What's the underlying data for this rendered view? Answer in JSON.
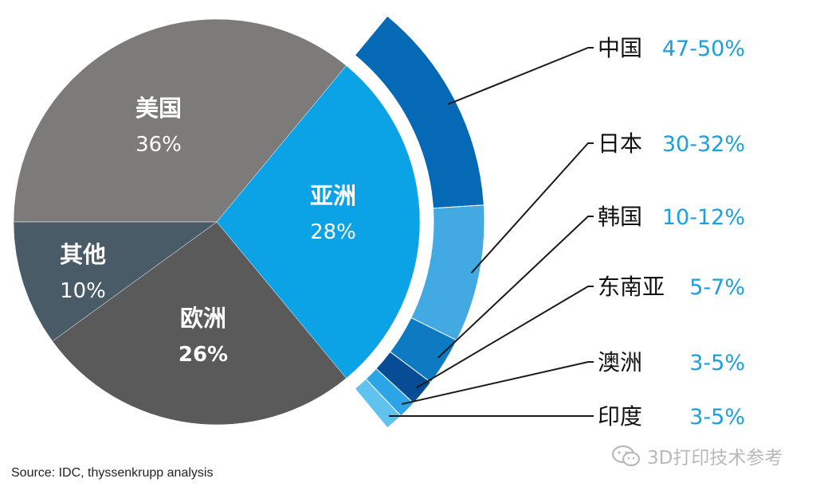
{
  "chart_data": {
    "type": "pie",
    "slices": [
      {
        "name": "美国",
        "value": 36,
        "label": "36%",
        "color": "#7c7b79"
      },
      {
        "name": "亚洲",
        "value": 28,
        "label": "28%",
        "color": "#0ca2e6"
      },
      {
        "name": "欧洲",
        "value": 26,
        "label": "26%",
        "color": "#5a5a5b"
      },
      {
        "name": "其他",
        "value": 10,
        "label": "10%",
        "color": "#485b66"
      }
    ],
    "asia_breakdown": [
      {
        "name": "中国",
        "label": "47-50%",
        "value": 48.5,
        "color": "#0569b5"
      },
      {
        "name": "日本",
        "label": "30-32%",
        "value": 31,
        "color": "#43a9e2"
      },
      {
        "name": "韩国",
        "label": "10-12%",
        "value": 11,
        "color": "#0d7ac2"
      },
      {
        "name": "东南亚",
        "label": "5-7%",
        "value": 6,
        "color": "#064d95"
      },
      {
        "name": "澳洲",
        "label": "3-5%",
        "value": 4,
        "color": "#2ba5e6"
      },
      {
        "name": "印度",
        "label": "3-5%",
        "value": 4,
        "color": "#60c2ee"
      }
    ],
    "colors": {
      "value_text": "#1aa0dc",
      "leader_line": "#1a1a1a",
      "inner_label": "#ffffff"
    },
    "source": "Source: IDC, thyssenkrupp analysis"
  },
  "watermark": {
    "text": "3D打印技术参考",
    "icon": "wechat-icon"
  }
}
